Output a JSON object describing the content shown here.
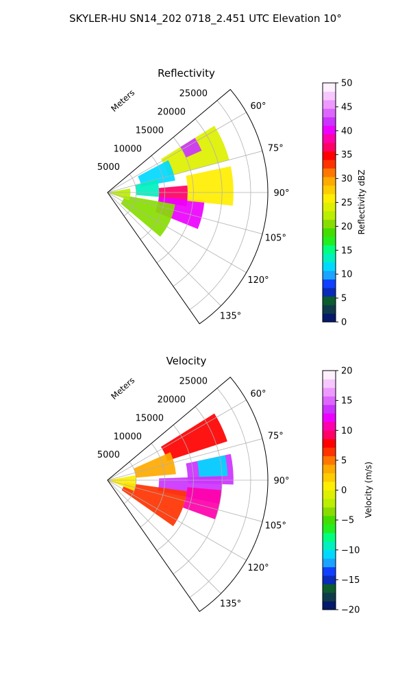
{
  "figure": {
    "title": "SKYLER-HU  SN14_202  0718_2.451 UTC Elevation 10°"
  },
  "chart_data": [
    {
      "type": "heatmap",
      "title": "Reflectivity",
      "projection": "polar sector",
      "range_label": "Meters",
      "range_ticks": [
        5000,
        10000,
        15000,
        20000,
        25000
      ],
      "range_tick_labels": [
        "5000",
        "10000",
        "15000",
        "20000",
        "25000"
      ],
      "range_max": 28000,
      "azimuth_range": [
        50,
        145
      ],
      "azimuth_ticks": [
        60,
        75,
        90,
        105,
        120,
        135
      ],
      "azimuth_tick_labels": [
        "60°",
        "75°",
        "90°",
        "105°",
        "120°",
        "135°"
      ],
      "grid": true,
      "colorbar": {
        "label": "Reflectivity dBZ",
        "range": [
          0,
          50
        ],
        "ticks": [
          0,
          5,
          10,
          15,
          20,
          25,
          30,
          35,
          40,
          45,
          50
        ],
        "tick_labels": [
          "0",
          "5",
          "10",
          "15",
          "20",
          "25",
          "30",
          "35",
          "40",
          "45",
          "50"
        ],
        "colors": [
          "#061a6b",
          "#103a4a",
          "#0c5c2e",
          "#0a2bb8",
          "#1040ff",
          "#1aa3ff",
          "#00d9ff",
          "#00f0c0",
          "#00ff80",
          "#22ee22",
          "#44dd00",
          "#88dd00",
          "#bbee00",
          "#ddf000",
          "#ffee00",
          "#ffcc00",
          "#ffaa00",
          "#ff7700",
          "#ff3300",
          "#ff0000",
          "#ff0066",
          "#ff00aa",
          "#ee00ff",
          "#cc33ff",
          "#dd66ff",
          "#ee99ff",
          "#f6c8ff",
          "#fff0ff"
        ]
      },
      "echo_regions": [
        {
          "az": [
            58,
            75
          ],
          "r": [
            11000,
            22000
          ],
          "value": 24
        },
        {
          "az": [
            62,
            80
          ],
          "r": [
            6000,
            12000
          ],
          "value": 12
        },
        {
          "az": [
            75,
            95
          ],
          "r": [
            5000,
            9000
          ],
          "value": 14
        },
        {
          "az": [
            85,
            100
          ],
          "r": [
            9000,
            14000
          ],
          "value": 36
        },
        {
          "az": [
            95,
            112
          ],
          "r": [
            9000,
            17000
          ],
          "value": 40
        },
        {
          "az": [
            100,
            130
          ],
          "r": [
            3000,
            12000
          ],
          "value": 21
        },
        {
          "az": [
            78,
            96
          ],
          "r": [
            14000,
            22000
          ],
          "value": 26
        },
        {
          "az": [
            58,
            66
          ],
          "r": [
            15000,
            18000
          ],
          "value": 42
        },
        {
          "az": [
            80,
            110
          ],
          "r": [
            0,
            4000
          ],
          "value": 22
        }
      ]
    },
    {
      "type": "heatmap",
      "title": "Velocity",
      "projection": "polar sector",
      "range_label": "Meters",
      "range_ticks": [
        5000,
        10000,
        15000,
        20000,
        25000
      ],
      "range_tick_labels": [
        "5000",
        "10000",
        "15000",
        "20000",
        "25000"
      ],
      "range_max": 28000,
      "azimuth_range": [
        50,
        145
      ],
      "azimuth_ticks": [
        60,
        75,
        90,
        105,
        120,
        135
      ],
      "azimuth_tick_labels": [
        "60°",
        "75°",
        "90°",
        "105°",
        "120°",
        "135°"
      ],
      "grid": true,
      "colorbar": {
        "label": "Velocity (m/s)",
        "range": [
          -20,
          20
        ],
        "ticks": [
          -20,
          -15,
          -10,
          -5,
          0,
          5,
          10,
          15,
          20
        ],
        "tick_labels": [
          "−20",
          "−15",
          "−10",
          "−5",
          "0",
          "5",
          "10",
          "15",
          "20"
        ],
        "colors": [
          "#061a6b",
          "#103a4a",
          "#0c5c2e",
          "#0a2bb8",
          "#1040ff",
          "#1aa3ff",
          "#00d9ff",
          "#00f0c0",
          "#00ff80",
          "#22ee22",
          "#44dd00",
          "#88dd00",
          "#bbee00",
          "#ddf000",
          "#ffee00",
          "#ffcc00",
          "#ffaa00",
          "#ff7700",
          "#ff3300",
          "#ff0000",
          "#ff0066",
          "#ff00aa",
          "#ee00ff",
          "#cc33ff",
          "#dd66ff",
          "#ee99ff",
          "#f6c8ff",
          "#fff0ff"
        ]
      },
      "echo_regions": [
        {
          "az": [
            58,
            72
          ],
          "r": [
            11000,
            22000
          ],
          "value": 8
        },
        {
          "az": [
            66,
            85
          ],
          "r": [
            5000,
            12000
          ],
          "value": 4
        },
        {
          "az": [
            78,
            92
          ],
          "r": [
            14000,
            22000
          ],
          "value": 13
        },
        {
          "az": [
            78,
            88
          ],
          "r": [
            16000,
            21000
          ],
          "value": -11
        },
        {
          "az": [
            88,
            102
          ],
          "r": [
            9000,
            20000
          ],
          "value": 14
        },
        {
          "az": [
            98,
            125
          ],
          "r": [
            3000,
            14000
          ],
          "value": 6
        },
        {
          "az": [
            95,
            110
          ],
          "r": [
            14000,
            20000
          ],
          "value": 10
        },
        {
          "az": [
            80,
            112
          ],
          "r": [
            0,
            5000
          ],
          "value": 1
        }
      ]
    }
  ]
}
